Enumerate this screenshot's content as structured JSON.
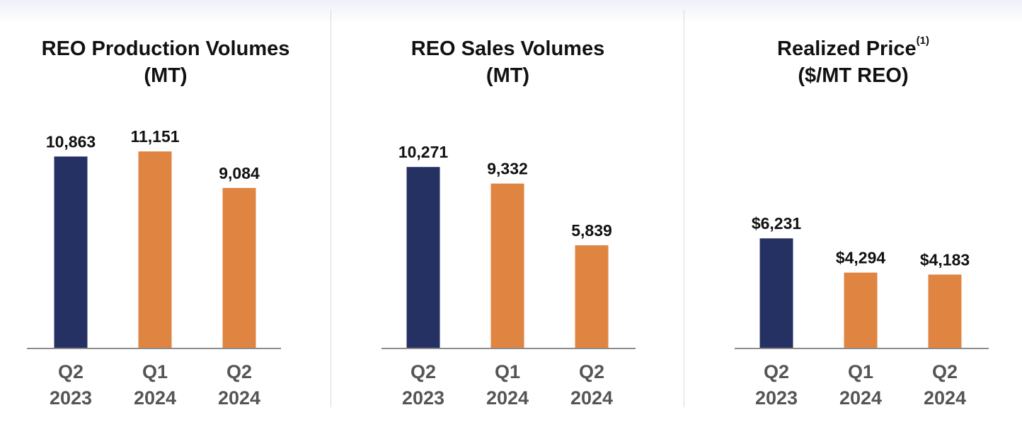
{
  "colors": {
    "highlight_bar": "#263163",
    "comparison_bar": "#e08442",
    "axis": "#8c8c8c",
    "divider": "#d9d9d9"
  },
  "chart_data": [
    {
      "type": "bar",
      "title_lines": [
        "REO Production Volumes",
        "(MT)"
      ],
      "title_superscript": "",
      "categories": [
        [
          "Q2",
          "2023"
        ],
        [
          "Q1",
          "2024"
        ],
        [
          "Q2",
          "2024"
        ]
      ],
      "values": [
        10863,
        11151,
        9084
      ],
      "value_labels": [
        "10,863",
        "11,151",
        "9,084"
      ],
      "bar_colors": [
        "#263163",
        "#e08442",
        "#e08442"
      ],
      "ylim": [
        0,
        12000
      ],
      "grid": false,
      "legend": "none"
    },
    {
      "type": "bar",
      "title_lines": [
        "REO Sales Volumes",
        "(MT)"
      ],
      "title_superscript": "",
      "categories": [
        [
          "Q2",
          "2023"
        ],
        [
          "Q1",
          "2024"
        ],
        [
          "Q2",
          "2024"
        ]
      ],
      "values": [
        10271,
        9332,
        5839
      ],
      "value_labels": [
        "10,271",
        "9,332",
        "5,839"
      ],
      "bar_colors": [
        "#263163",
        "#e08442",
        "#e08442"
      ],
      "ylim": [
        0,
        12000
      ],
      "grid": false,
      "legend": "none"
    },
    {
      "type": "bar",
      "title_lines": [
        "Realized Price",
        "($/MT REO)"
      ],
      "title_superscript": "(1)",
      "categories": [
        [
          "Q2",
          "2023"
        ],
        [
          "Q1",
          "2024"
        ],
        [
          "Q2",
          "2024"
        ]
      ],
      "values": [
        6231,
        4294,
        4183
      ],
      "value_labels": [
        "$6,231",
        "$4,294",
        "$4,183"
      ],
      "bar_colors": [
        "#263163",
        "#e08442",
        "#e08442"
      ],
      "ylim": [
        0,
        12000
      ],
      "grid": false,
      "legend": "none"
    }
  ]
}
